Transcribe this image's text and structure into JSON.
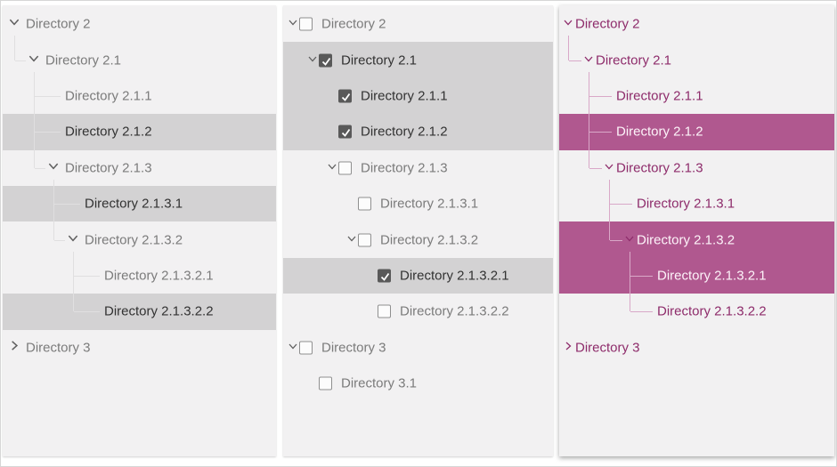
{
  "colors": {
    "page_bg": "#ffffff",
    "page_border": "#d6d6d6",
    "panel_bg": "#f2f1f2",
    "gray_selection": "#d3d2d3",
    "gray_text": "#7b7b7b",
    "gray_text_selected": "#323232",
    "gray_chevron": "#5f5f5f",
    "gray_line": "#e0dfe0",
    "checkbox_border": "#8f8f8f",
    "checkbox_checked_bg": "#595959",
    "plum_text": "#8e2c6b",
    "plum_selection": "#b0588f",
    "plum_text_selected": "#fdf3f9",
    "plum_line": "#d9a8c8"
  },
  "panels": [
    {
      "name": "treeview-panel-default",
      "variant": "gray",
      "show_checkboxes": false,
      "show_lines": true,
      "nodes": [
        {
          "label": "Directory 2",
          "level": 0,
          "expander": "expanded",
          "selected": false
        },
        {
          "label": "Directory 2.1",
          "level": 1,
          "expander": "expanded",
          "selected": false
        },
        {
          "label": "Directory 2.1.1",
          "level": 2,
          "expander": null,
          "selected": false
        },
        {
          "label": "Directory 2.1.2",
          "level": 2,
          "expander": null,
          "selected": true
        },
        {
          "label": "Directory 2.1.3",
          "level": 2,
          "expander": "expanded",
          "selected": false
        },
        {
          "label": "Directory 2.1.3.1",
          "level": 3,
          "expander": null,
          "selected": true
        },
        {
          "label": "Directory 2.1.3.2",
          "level": 3,
          "expander": "expanded",
          "selected": false
        },
        {
          "label": "Directory 2.1.3.2.1",
          "level": 4,
          "expander": null,
          "selected": false
        },
        {
          "label": "Directory 2.1.3.2.2",
          "level": 4,
          "expander": null,
          "selected": true
        },
        {
          "label": "Directory 3",
          "level": 0,
          "expander": "collapsed",
          "selected": false
        }
      ]
    },
    {
      "name": "treeview-panel-checkbox",
      "variant": "checkbox",
      "show_checkboxes": true,
      "show_lines": false,
      "nodes": [
        {
          "label": "Directory 2",
          "level": 0,
          "expander": "expanded",
          "checked": false,
          "selected": false
        },
        {
          "label": "Directory 2.1",
          "level": 1,
          "expander": "expanded",
          "checked": true,
          "selected": true
        },
        {
          "label": "Directory 2.1.1",
          "level": 2,
          "expander": null,
          "checked": true,
          "selected": true
        },
        {
          "label": "Directory 2.1.2",
          "level": 2,
          "expander": null,
          "checked": true,
          "selected": true
        },
        {
          "label": "Directory 2.1.3",
          "level": 2,
          "expander": "expanded",
          "checked": false,
          "selected": false
        },
        {
          "label": "Directory 2.1.3.1",
          "level": 3,
          "expander": null,
          "checked": false,
          "selected": false
        },
        {
          "label": "Directory 2.1.3.2",
          "level": 3,
          "expander": "expanded",
          "checked": false,
          "selected": false
        },
        {
          "label": "Directory 2.1.3.2.1",
          "level": 4,
          "expander": null,
          "checked": true,
          "selected": true
        },
        {
          "label": "Directory 2.1.3.2.2",
          "level": 4,
          "expander": null,
          "checked": false,
          "selected": false
        },
        {
          "label": "Directory 3",
          "level": 0,
          "expander": "expanded",
          "checked": false,
          "selected": false
        },
        {
          "label": "Directory 3.1",
          "level": 1,
          "expander": null,
          "checked": false,
          "selected": false
        }
      ]
    },
    {
      "name": "treeview-panel-styled",
      "variant": "plum",
      "show_checkboxes": false,
      "show_lines": true,
      "nodes": [
        {
          "label": "Directory 2",
          "level": 0,
          "expander": "expanded",
          "selected": false
        },
        {
          "label": "Directory 2.1",
          "level": 1,
          "expander": "expanded",
          "selected": false
        },
        {
          "label": "Directory 2.1.1",
          "level": 2,
          "expander": null,
          "selected": false
        },
        {
          "label": "Directory 2.1.2",
          "level": 2,
          "expander": null,
          "selected": true
        },
        {
          "label": "Directory 2.1.3",
          "level": 2,
          "expander": "expanded",
          "selected": false
        },
        {
          "label": "Directory 2.1.3.1",
          "level": 3,
          "expander": null,
          "selected": false
        },
        {
          "label": "Directory 2.1.3.2",
          "level": 3,
          "expander": "expanded",
          "selected": true
        },
        {
          "label": "Directory 2.1.3.2.1",
          "level": 4,
          "expander": null,
          "selected": true
        },
        {
          "label": "Directory 2.1.3.2.2",
          "level": 4,
          "expander": null,
          "selected": false
        },
        {
          "label": "Directory 3",
          "level": 0,
          "expander": "collapsed",
          "selected": false
        }
      ]
    }
  ]
}
